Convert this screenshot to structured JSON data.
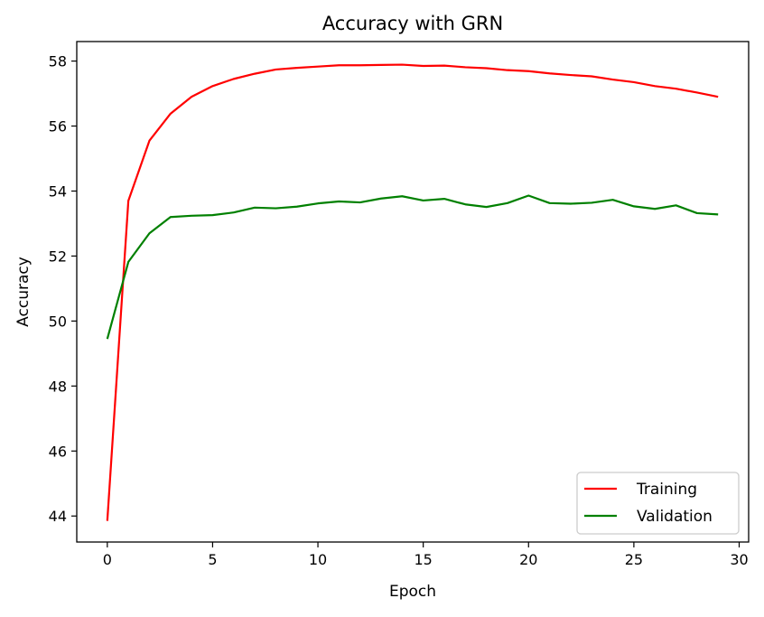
{
  "chart_data": {
    "type": "line",
    "title": "Accuracy with GRN",
    "xlabel": "Epoch",
    "ylabel": "Accuracy",
    "xlim": [
      -1.45,
      30.45
    ],
    "ylim": [
      43.2,
      58.6
    ],
    "xticks": [
      0,
      5,
      10,
      15,
      20,
      25,
      30
    ],
    "yticks": [
      44,
      46,
      48,
      50,
      52,
      54,
      56,
      58
    ],
    "grid": false,
    "legend_position": "lower-right",
    "x": [
      0,
      1,
      2,
      3,
      4,
      5,
      6,
      7,
      8,
      9,
      10,
      11,
      12,
      13,
      14,
      15,
      16,
      17,
      18,
      19,
      20,
      21,
      22,
      23,
      24,
      25,
      26,
      27,
      28,
      29
    ],
    "series": [
      {
        "name": "Training",
        "color": "#ff0000",
        "values": [
          43.85,
          53.7,
          55.55,
          56.38,
          56.9,
          57.23,
          57.45,
          57.61,
          57.74,
          57.79,
          57.83,
          57.87,
          57.87,
          57.88,
          57.89,
          57.85,
          57.86,
          57.81,
          57.78,
          57.72,
          57.69,
          57.62,
          57.57,
          57.53,
          57.43,
          57.35,
          57.23,
          57.15,
          57.03,
          56.9
        ]
      },
      {
        "name": "Validation",
        "color": "#008000",
        "values": [
          49.45,
          51.82,
          52.7,
          53.2,
          53.24,
          53.26,
          53.34,
          53.49,
          53.47,
          53.52,
          53.62,
          53.68,
          53.65,
          53.77,
          53.84,
          53.71,
          53.76,
          53.59,
          53.51,
          53.63,
          53.86,
          53.63,
          53.61,
          53.64,
          53.73,
          53.53,
          53.45,
          53.56,
          53.32,
          53.28
        ]
      }
    ]
  }
}
